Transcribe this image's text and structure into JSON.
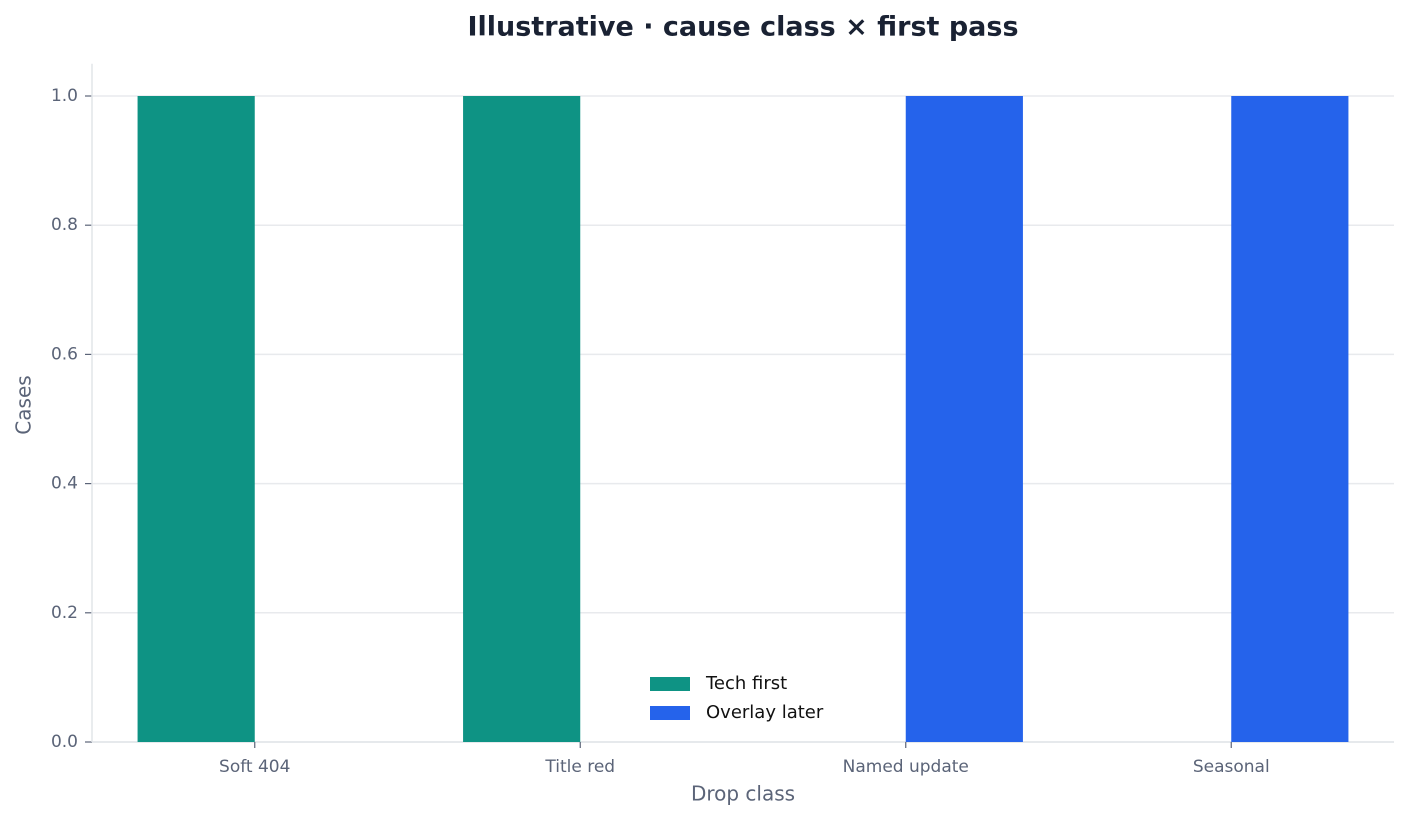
{
  "chart_data": {
    "type": "bar",
    "title": "Illustrative · cause class × first pass",
    "x_label": "Drop class",
    "y_label": "Cases",
    "categories": [
      "Soft 404",
      "Title red",
      "Named update",
      "Seasonal"
    ],
    "series": [
      {
        "name": "Tech first",
        "color": "#0e9384",
        "values": [
          1,
          1,
          0,
          0
        ]
      },
      {
        "name": "Overlay later",
        "color": "#2563eb",
        "values": [
          0,
          0,
          1,
          1
        ]
      }
    ],
    "ylim": [
      0,
      1.05
    ],
    "yticks": [
      {
        "value": 0,
        "label": "0.0"
      },
      0.2,
      0.4,
      0.6,
      0.8,
      {
        "value": 1,
        "label": "1.0"
      }
    ],
    "grid": true,
    "legend": "bottom"
  }
}
